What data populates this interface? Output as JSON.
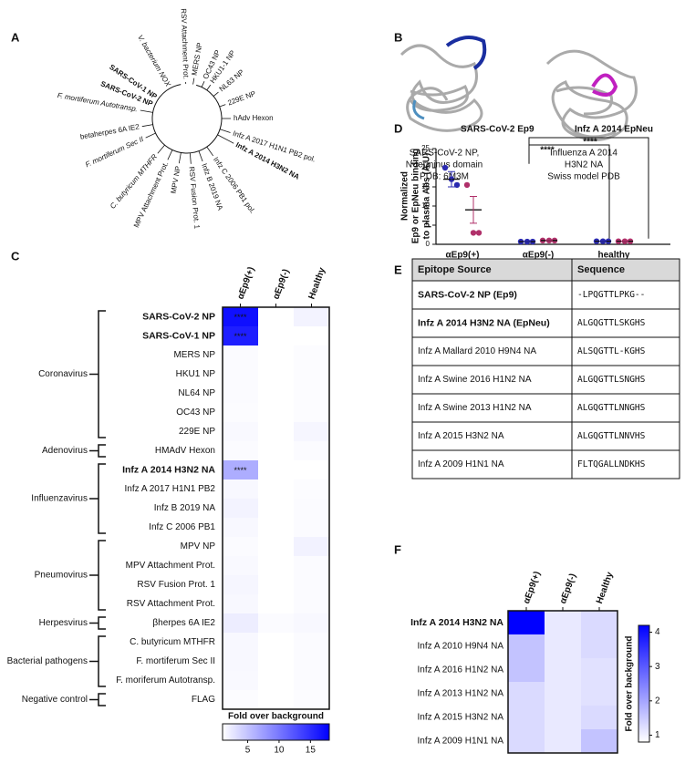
{
  "panels": {
    "a": {
      "label": "A",
      "leaves": [
        {
          "text": "RSV Attachment Prot."
        },
        {
          "text": "MERS NP"
        },
        {
          "text": "OC43 NP"
        },
        {
          "text": "HKU1-1 NP"
        },
        {
          "text": "NL63 NP"
        },
        {
          "text": "229E NP"
        },
        {
          "text": "hAdv Hexon"
        },
        {
          "text": "Infz A 2017 H1N1 PB2 pol."
        },
        {
          "text": "Infz A 2014 H3N2 NA",
          "color": "#b0307a"
        },
        {
          "text": "Infz C 2006 PB1 pol."
        },
        {
          "text": "Infz B 2019 NA"
        },
        {
          "text": "RSV Fusion Prot. 1"
        },
        {
          "text": "MPV NP"
        },
        {
          "text": "MPV Attachment Prot."
        },
        {
          "text": "C. butyricum MTHFR"
        },
        {
          "text": "F. mortiferum Sec II"
        },
        {
          "text": "betaherpes 6A IE2"
        },
        {
          "text": "F. mortiferum Autotransp."
        },
        {
          "text": "SARS-CoV-2 NP",
          "color": "#2a2ab0"
        },
        {
          "text": "SARS-CoV-1 NP",
          "color": "#4caa3a"
        },
        {
          "text": "V. bacterium NOX"
        }
      ]
    },
    "b": {
      "label": "B",
      "left_caption": [
        "SARS-CoV-2 NP,",
        "N-terminus domain",
        "PDB: 6M3M"
      ],
      "right_caption": [
        "Influenza A 2014",
        "H3N2 NA",
        "Swiss model PDB"
      ]
    },
    "c": {
      "label": "C",
      "columns": [
        "αEp9(+)",
        "αEp9(-)",
        "Healthy"
      ],
      "rows": [
        {
          "label": "SARS-CoV-2 NP",
          "color": "#2a2ab0"
        },
        {
          "label": "SARS-CoV-1 NP",
          "color": "#2e8b2e"
        },
        {
          "label": "MERS NP"
        },
        {
          "label": "HKU1 NP"
        },
        {
          "label": "NL64 NP"
        },
        {
          "label": "OC43 NP"
        },
        {
          "label": "229E NP"
        },
        {
          "label": "HMAdV Hexon"
        },
        {
          "label": "Infz A 2014 H3N2 NA",
          "color": "#b0307a"
        },
        {
          "label": "Infz A 2017 H1N1 PB2"
        },
        {
          "label": "Infz B 2019 NA"
        },
        {
          "label": "Infz C 2006 PB1"
        },
        {
          "label": "MPV NP"
        },
        {
          "label": "MPV Attachment Prot."
        },
        {
          "label": "RSV Fusion Prot. 1"
        },
        {
          "label": "RSV Attachment Prot."
        },
        {
          "label": "βherpes 6A IE2"
        },
        {
          "label": "C. butyricum MTHFR"
        },
        {
          "label": "F. mortiferum Sec II"
        },
        {
          "label": "F. moriferum Autotransp."
        },
        {
          "label": "FLAG"
        }
      ],
      "groups": [
        {
          "name": "Coronavirus",
          "rows": [
            0,
            6
          ]
        },
        {
          "name": "Adenovirus",
          "rows": [
            7,
            7
          ]
        },
        {
          "name": "Influenzavirus",
          "rows": [
            8,
            11
          ]
        },
        {
          "name": "Pneumovirus",
          "rows": [
            12,
            15
          ]
        },
        {
          "name": "Herpesvirus",
          "rows": [
            16,
            16
          ]
        },
        {
          "name": "Bacterial pathogens",
          "rows": [
            17,
            19
          ]
        },
        {
          "name": "Negative control",
          "rows": [
            20,
            20
          ]
        }
      ],
      "values": [
        [
          17,
          1,
          1.8
        ],
        [
          16,
          1,
          1
        ],
        [
          1.3,
          1,
          1.2
        ],
        [
          1.3,
          1,
          1.2
        ],
        [
          1.3,
          1,
          1.2
        ],
        [
          1.2,
          1,
          1.2
        ],
        [
          1.4,
          1,
          1.6
        ],
        [
          1.3,
          1,
          1.3
        ],
        [
          6.5,
          1,
          1
        ],
        [
          1.5,
          1,
          1.2
        ],
        [
          1.8,
          1,
          1.3
        ],
        [
          1.5,
          1,
          1.3
        ],
        [
          1.3,
          1,
          1.9
        ],
        [
          1.4,
          1,
          1.3
        ],
        [
          1.6,
          1,
          1.3
        ],
        [
          1.5,
          1,
          1.3
        ],
        [
          2.2,
          1.3,
          1.5
        ],
        [
          1.5,
          1,
          1.3
        ],
        [
          1.5,
          1,
          1.3
        ],
        [
          1.4,
          1,
          1.3
        ],
        [
          1.2,
          1,
          1.2
        ]
      ],
      "cell_labels": [
        [
          "****",
          null,
          null
        ],
        [
          "****",
          null,
          null
        ],
        [
          null,
          null,
          null
        ],
        [
          null,
          null,
          null
        ],
        [
          null,
          null,
          null
        ],
        [
          null,
          null,
          null
        ],
        [
          null,
          null,
          null
        ],
        [
          null,
          null,
          null
        ],
        [
          "****",
          null,
          null
        ],
        [
          null,
          null,
          null
        ],
        [
          null,
          null,
          null
        ],
        [
          null,
          null,
          null
        ],
        [
          null,
          null,
          null
        ],
        [
          null,
          null,
          null
        ],
        [
          null,
          null,
          null
        ],
        [
          null,
          null,
          null
        ],
        [
          null,
          null,
          null
        ],
        [
          null,
          null,
          null
        ],
        [
          null,
          null,
          null
        ],
        [
          null,
          null,
          null
        ],
        [
          null,
          null,
          null
        ]
      ],
      "colorbar_title": "Fold over background",
      "colorlim": [
        1,
        18
      ],
      "colorticks": [
        5,
        10,
        15
      ],
      "color": "#0000ff"
    },
    "d": {
      "label": "D",
      "ylabel": [
        "Normalized",
        "Ep9 or EpNeu binding",
        "to plasma Abs (A.U)"
      ],
      "categories": [
        "αEp9(+)",
        "αEp9(-)",
        [
          "healthy",
          "individuals"
        ]
      ],
      "ylim": [
        0,
        25
      ],
      "yticks": [
        0,
        5,
        10,
        15,
        20,
        25
      ],
      "significance": [
        "****",
        "****"
      ],
      "series": [
        {
          "name": "SARS-CoV-2 Ep9",
          "color": "#2a2ab0",
          "values": [
            [
              20,
              17,
              15.5
            ],
            [
              0.7,
              0.7,
              0.7
            ],
            [
              0.8,
              0.8,
              0.8
            ]
          ],
          "mean": [
            17,
            0.7,
            0.8
          ],
          "sem": [
            2,
            0,
            0
          ]
        },
        {
          "name": "Infz A 2014 EpNeu",
          "color": "#b0306a",
          "values": [
            [
              15.5,
              3,
              3
            ],
            [
              1,
              1,
              1
            ],
            [
              0.8,
              0.8,
              0.8
            ]
          ],
          "mean": [
            9,
            1,
            0.8
          ],
          "sem": [
            3.5,
            0,
            0
          ]
        }
      ]
    },
    "e": {
      "label": "E",
      "header": [
        "Epitope Source",
        "Sequence"
      ],
      "rows": [
        {
          "source": "SARS-CoV-2 NP (Ep9)",
          "sequence": "-LPQGTTLPKG--",
          "color": "#3a3ad0"
        },
        {
          "source": "Infz A 2014 H3N2 NA (EpNeu)",
          "sequence": "ALGQGTTLSKGHS",
          "color": "#b0307a"
        },
        {
          "source": "Infz A Mallard 2010 H9N4 NA",
          "sequence": "ALSQGTTL-KGHS"
        },
        {
          "source": "Infz A Swine 2016 H1N2 NA",
          "sequence": "ALGQGTTLSNGHS"
        },
        {
          "source": "Infz A Swine 2013 H1N2 NA",
          "sequence": "ALGQGTTLNNGHS"
        },
        {
          "source": "Infz A 2015 H3N2 NA",
          "sequence": "ALGQGTTLNNVHS"
        },
        {
          "source": "Infz A 2009 H1N1 NA",
          "sequence": "FLTQGALLNDKHS"
        }
      ]
    },
    "f": {
      "label": "F",
      "columns": [
        "αEp9(+)",
        "αEp9(-)",
        "Healthy"
      ],
      "rows": [
        {
          "label": "Infz A 2014 H3N2 NA",
          "color": "#b0307a"
        },
        {
          "label": "Infz A 2010 H9N4 NA"
        },
        {
          "label": "Infz A 2016 H1N2 NA"
        },
        {
          "label": "Infz A 2013 H1N2 NA"
        },
        {
          "label": "Infz A 2015 H3N2 NA"
        },
        {
          "label": "Infz A 2009 H1N1 NA"
        }
      ],
      "values": [
        [
          4.2,
          1.1,
          1.3
        ],
        [
          1.6,
          1.1,
          1.3
        ],
        [
          1.6,
          1.1,
          1.2
        ],
        [
          1.3,
          1.1,
          1.2
        ],
        [
          1.3,
          1.1,
          1.3
        ],
        [
          1.3,
          1.1,
          1.6
        ]
      ],
      "colorbar_title": "Fold over background",
      "colorlim": [
        0.8,
        4.2
      ],
      "colorticks": [
        1,
        2,
        3,
        4
      ],
      "color": "#0000ff"
    }
  }
}
